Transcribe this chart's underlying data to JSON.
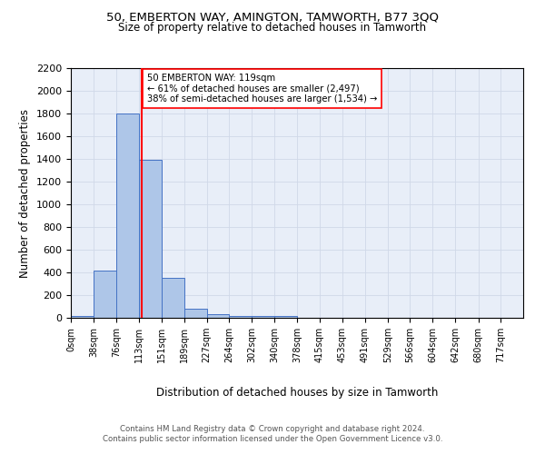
{
  "title1": "50, EMBERTON WAY, AMINGTON, TAMWORTH, B77 3QQ",
  "title2": "Size of property relative to detached houses in Tamworth",
  "xlabel": "Distribution of detached houses by size in Tamworth",
  "ylabel": "Number of detached properties",
  "annotation_line1": "50 EMBERTON WAY: 119sqm",
  "annotation_line2": "← 61% of detached houses are smaller (2,497)",
  "annotation_line3": "38% of semi-detached houses are larger (1,534) →",
  "property_size": 119,
  "bar_edges": [
    0,
    38,
    76,
    113,
    151,
    189,
    227,
    264,
    302,
    340,
    378,
    415,
    453,
    491,
    529,
    566,
    604,
    642,
    680,
    717,
    755
  ],
  "bar_heights": [
    20,
    420,
    1800,
    1390,
    355,
    80,
    30,
    20,
    20,
    20,
    0,
    0,
    0,
    0,
    0,
    0,
    0,
    0,
    0,
    0
  ],
  "bar_color": "#aec6e8",
  "bar_edgecolor": "#4472c4",
  "redline_x": 119,
  "ylim": [
    0,
    2200
  ],
  "yticks": [
    0,
    200,
    400,
    600,
    800,
    1000,
    1200,
    1400,
    1600,
    1800,
    2000,
    2200
  ],
  "grid_color": "#d0d8e8",
  "background_color": "#e8eef8",
  "footer_line1": "Contains HM Land Registry data © Crown copyright and database right 2024.",
  "footer_line2": "Contains public sector information licensed under the Open Government Licence v3.0."
}
